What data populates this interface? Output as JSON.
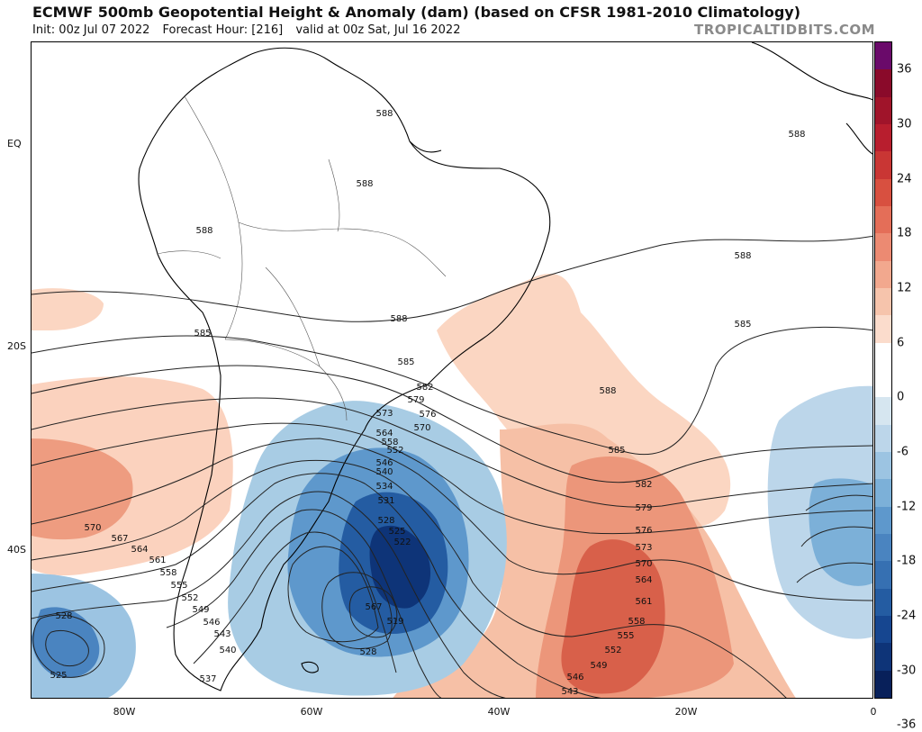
{
  "header": {
    "title": "ECMWF 500mb Geopotential Height & Anomaly (dam) (based on CFSR 1981-2010 Climatology)",
    "init": "Init: 00z Jul 07 2022",
    "forecast_hour": "Forecast Hour: [216]",
    "valid": "valid at 00z Sat, Jul 16 2022",
    "brand": "TROPICALTIDBITS.COM"
  },
  "axes": {
    "lat_labels": [
      "EQ",
      "20S",
      "40S"
    ],
    "lon_labels": [
      "80W",
      "60W",
      "40W",
      "20W",
      "0"
    ]
  },
  "colorbar": {
    "labels": [
      "36",
      "30",
      "24",
      "18",
      "12",
      "6",
      "0",
      "-6",
      "-12",
      "-18",
      "-24",
      "-30",
      "-36"
    ],
    "colors": [
      "#6a0a6a",
      "#8a0a2a",
      "#a0142a",
      "#b81e2e",
      "#c93634",
      "#d85040",
      "#e46e58",
      "#ec8a72",
      "#f2a88e",
      "#f6c4ac",
      "#fbdccc",
      "#ffffff",
      "#ffffff",
      "#d6e6f0",
      "#bcd6ea",
      "#9cc4e2",
      "#7cb0d8",
      "#5e98cc",
      "#4a84c0",
      "#3670b2",
      "#245ca2",
      "#164690",
      "#0e3478",
      "#08205a"
    ]
  },
  "contour_labels": [
    {
      "text": "588"
    },
    {
      "text": "588"
    },
    {
      "text": "588"
    },
    {
      "text": "588"
    },
    {
      "text": "588"
    },
    {
      "text": "588"
    },
    {
      "text": "588"
    },
    {
      "text": "585"
    },
    {
      "text": "585"
    },
    {
      "text": "585"
    },
    {
      "text": "585"
    },
    {
      "text": "582"
    },
    {
      "text": "582"
    },
    {
      "text": "579"
    },
    {
      "text": "579"
    },
    {
      "text": "576"
    },
    {
      "text": "576"
    },
    {
      "text": "573"
    },
    {
      "text": "573"
    },
    {
      "text": "570"
    },
    {
      "text": "570"
    },
    {
      "text": "570"
    },
    {
      "text": "567"
    },
    {
      "text": "567"
    },
    {
      "text": "564"
    },
    {
      "text": "564"
    },
    {
      "text": "564"
    },
    {
      "text": "561"
    },
    {
      "text": "561"
    },
    {
      "text": "558"
    },
    {
      "text": "558"
    },
    {
      "text": "558"
    },
    {
      "text": "555"
    },
    {
      "text": "555"
    },
    {
      "text": "552"
    },
    {
      "text": "552"
    },
    {
      "text": "552"
    },
    {
      "text": "549"
    },
    {
      "text": "549"
    },
    {
      "text": "546"
    },
    {
      "text": "546"
    },
    {
      "text": "546"
    },
    {
      "text": "543"
    },
    {
      "text": "543"
    },
    {
      "text": "540"
    },
    {
      "text": "540"
    },
    {
      "text": "537"
    },
    {
      "text": "534"
    },
    {
      "text": "531"
    },
    {
      "text": "528"
    },
    {
      "text": "528"
    },
    {
      "text": "528"
    },
    {
      "text": "525"
    },
    {
      "text": "525"
    },
    {
      "text": "522"
    },
    {
      "text": "519"
    }
  ]
}
